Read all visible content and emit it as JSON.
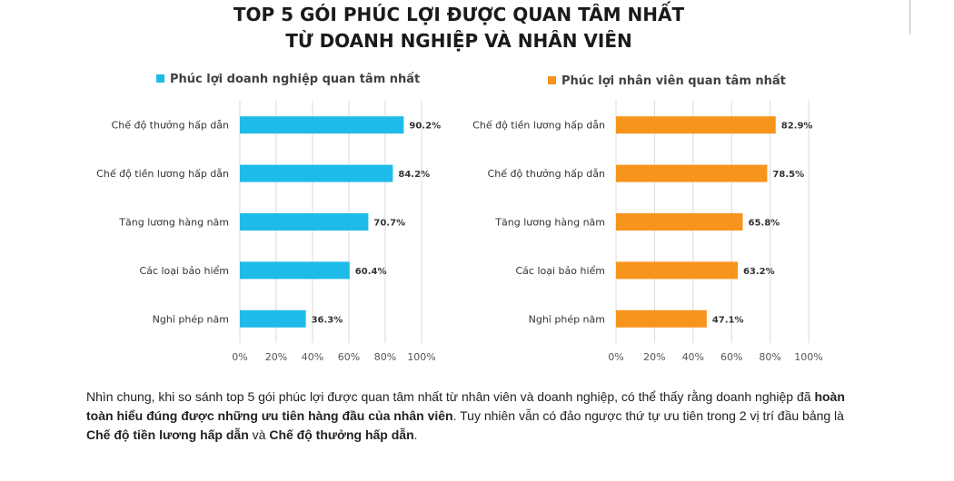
{
  "title": {
    "line1": "TOP 5 GÓI PHÚC LỢI ĐƯỢC QUAN TÂM NHẤT",
    "line2": "TỪ DOANH NGHIỆP VÀ NHÂN VIÊN"
  },
  "summary": {
    "p1": "Nhìn chung, khi so sánh top 5 gói phúc lợi được quan tâm nhất từ nhân viên và doanh nghiệp, có thể thấy rằng doanh nghiệp đã ",
    "b1": "hoàn toàn hiểu đúng được những ưu tiên hàng đầu của nhân viên",
    "p2": ". Tuy nhiên vẫn có đảo ngược thứ tự ưu tiên trong 2 vị trí đầu bảng là ",
    "b2": "Chế độ tiền lương hấp dẫn",
    "p3": " và ",
    "b3": "Chế độ thưởng hấp dẫn",
    "p4": "."
  },
  "chart_data": [
    {
      "type": "bar",
      "orientation": "horizontal",
      "series": [
        {
          "name": "Phúc lợi doanh nghiệp quan tâm nhất",
          "values": [
            90.2,
            84.2,
            70.7,
            60.4,
            36.3
          ],
          "value_labels": [
            "90.2%",
            "84.2%",
            "70.7%",
            "60.4%",
            "36.3%"
          ]
        }
      ],
      "categories": [
        "Chế độ thưởng hấp dẫn",
        "Chế độ tiền lương hấp dẫn",
        "Tăng lương hàng năm",
        "Các loại bảo hiểm",
        "Nghỉ phép năm"
      ],
      "xlim": [
        0,
        100
      ],
      "ticks": [
        "0%",
        "20%",
        "40%",
        "60%",
        "80%",
        "100%"
      ],
      "grid": true,
      "legend": "top",
      "color": "#1ebbe9"
    },
    {
      "type": "bar",
      "orientation": "horizontal",
      "series": [
        {
          "name": "Phúc lợi nhân viên quan tâm nhất",
          "values": [
            82.9,
            78.5,
            65.8,
            63.2,
            47.1
          ],
          "value_labels": [
            "82.9%",
            "78.5%",
            "65.8%",
            "63.2%",
            "47.1%"
          ]
        }
      ],
      "categories": [
        "Chế độ tiền lương hấp dẫn",
        "Chế độ thưởng hấp dẫn",
        "Tăng lương hàng năm",
        "Các loại bảo hiểm",
        "Nghỉ phép năm"
      ],
      "xlim": [
        0,
        100
      ],
      "ticks": [
        "0%",
        "20%",
        "40%",
        "60%",
        "80%",
        "100%"
      ],
      "grid": true,
      "legend": "top",
      "color": "#f7941d"
    }
  ]
}
